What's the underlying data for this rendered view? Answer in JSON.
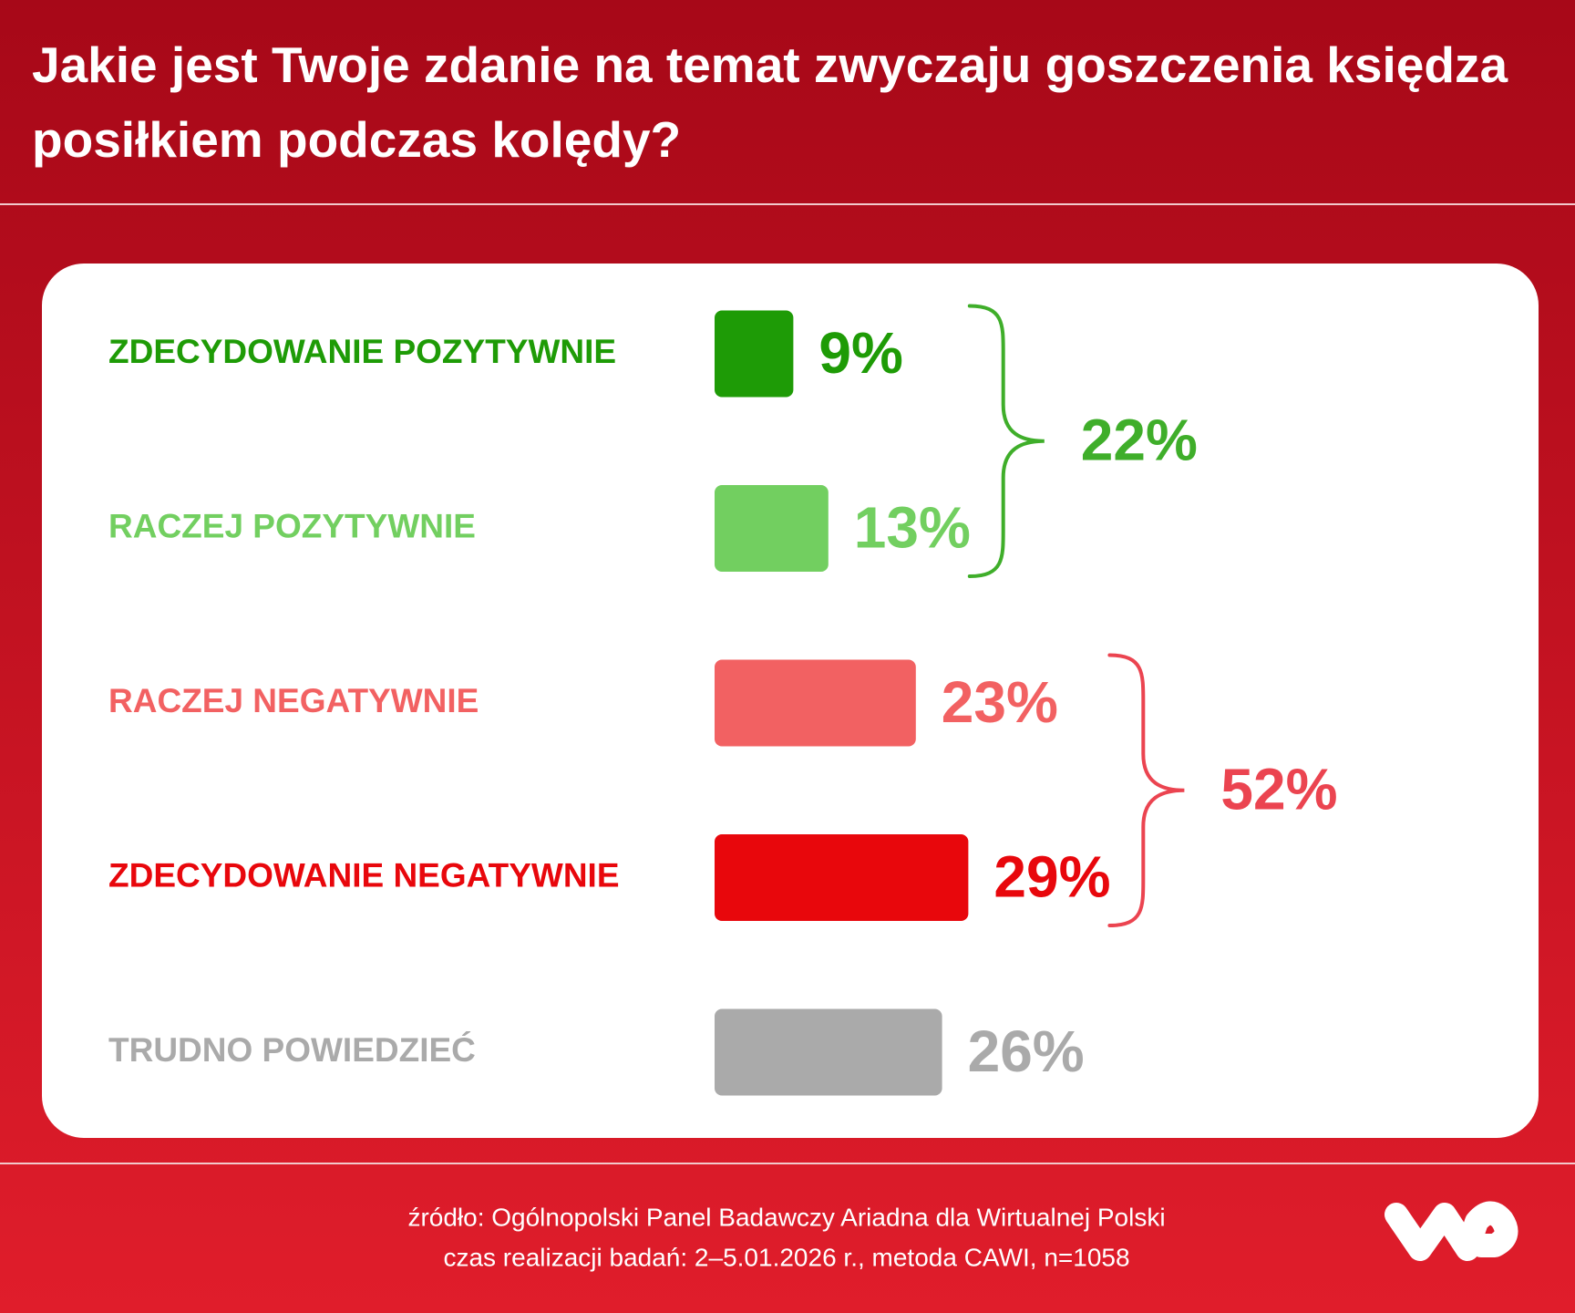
{
  "chart_data": {
    "type": "bar",
    "title": "Jakie jest Twoje zdanie na temat zwyczaju goszczenia księdza posiłkiem podczas kolędy?",
    "categories": [
      "ZDECYDOWANIE POZYTYWNIE",
      "RACZEJ POZYTYWNIE",
      "RACZEJ NEGATYWNIE",
      "ZDECYDOWANIE NEGATYWNIE",
      "TRUDNO POWIEDZIEĆ"
    ],
    "values": [
      9,
      13,
      23,
      29,
      26
    ],
    "value_labels": [
      "9%",
      "13%",
      "23%",
      "29%",
      "26%"
    ],
    "colors": [
      "#1e9b06",
      "#72cf60",
      "#f26162",
      "#e8070c",
      "#aaaaaa"
    ],
    "groups": [
      {
        "value": 22,
        "label": "22%",
        "color": "#3fae2a"
      },
      {
        "value": 52,
        "label": "52%",
        "color": "#eb4450"
      }
    ],
    "source": "źródło: Ogólnopolski Panel Badawczy Ariadna dla Wirtualnej Polski",
    "note": "czas realizacji badań: 2–5.01.2026 r., metoda CAWI, n=1058"
  }
}
